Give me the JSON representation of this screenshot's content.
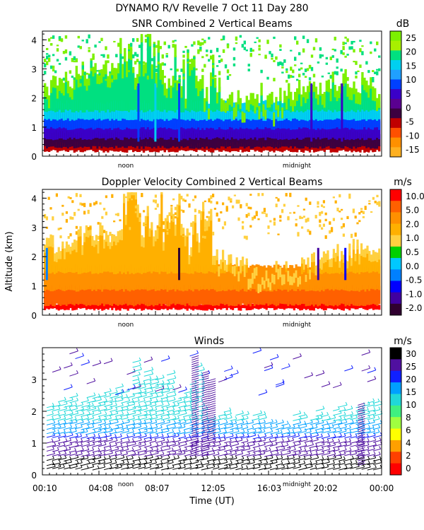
{
  "page": {
    "title": "DYNAMO R/V Revelle    7 Oct 11 Day 280",
    "ylabel": "Altitude (km)"
  },
  "colors": {
    "snr_scale": [
      "#7cf000",
      "#a8f000",
      "#00e080",
      "#00d0f0",
      "#20a0ff",
      "#0040ff",
      "#3a00c8",
      "#5a0090",
      "#3c0040",
      "#c00000",
      "#ff5000",
      "#ff9000",
      "#ffb020"
    ],
    "vel_scale": [
      "#ff0000",
      "#ff6000",
      "#ff9000",
      "#ffb000",
      "#ffd040",
      "#00d000",
      "#00c8ff",
      "#0080ff",
      "#0000ff",
      "#4000a0",
      "#300030"
    ],
    "wind_scale": [
      "#000000",
      "#5010a0",
      "#1020ff",
      "#00a0ff",
      "#20d8d8",
      "#40f080",
      "#a0ff40",
      "#ffff00",
      "#ffa000",
      "#ff4000",
      "#ff0000"
    ]
  },
  "chart_data": [
    {
      "type": "heatmap",
      "title": "SNR Combined 2 Vertical Beams",
      "units": "dB",
      "ylim": [
        0,
        4.3
      ],
      "yticks": [
        "0",
        "1",
        "2",
        "3",
        "4"
      ],
      "ytick_values": [
        0,
        1,
        2,
        3,
        4
      ],
      "markers": [
        "noon",
        "midnight"
      ],
      "colorbar": [
        "25",
        "20",
        "15",
        "10",
        "5",
        "0",
        "-5",
        "-10",
        "-15"
      ]
    },
    {
      "type": "heatmap",
      "title": "Doppler Velocity Combined 2 Vertical Beams",
      "units": "m/s",
      "ylim": [
        0,
        4.3
      ],
      "yticks": [
        "0",
        "1",
        "2",
        "3",
        "4"
      ],
      "ytick_values": [
        0,
        1,
        2,
        3,
        4
      ],
      "markers": [
        "noon",
        "midnight"
      ],
      "colorbar": [
        "10.0",
        "5.0",
        "2.0",
        "1.0",
        "0.5",
        "0.0",
        "-0.5",
        "-1.0",
        "-2.0"
      ]
    },
    {
      "type": "scatter",
      "title": "Winds",
      "units": "m/s",
      "ylim": [
        0,
        4.0
      ],
      "yticks": [
        "0",
        "1",
        "2",
        "3"
      ],
      "ytick_values": [
        0,
        1,
        2,
        3
      ],
      "markers": [
        "noon",
        "midnight"
      ],
      "colorbar": [
        "30",
        "25",
        "20",
        "15",
        "10",
        "8",
        "6",
        "4",
        "2",
        "0"
      ],
      "xlabel": "Time (UT)",
      "xticks": [
        "00:10",
        "04:08",
        "08:07",
        "12:05",
        "16:03",
        "20:02",
        "00:00"
      ],
      "xtick_hours": [
        0.167,
        4.133,
        8.117,
        12.083,
        16.05,
        20.033,
        24.0
      ],
      "xlim_hours": [
        0,
        24
      ]
    }
  ]
}
